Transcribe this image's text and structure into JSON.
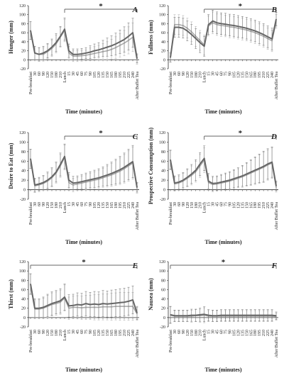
{
  "chart_data": [
    {
      "type": "line",
      "panel_label": "A",
      "ylabel": "Hunger (mm)",
      "xlabel": "Time (minutes)",
      "ylim": [
        -20,
        120
      ],
      "yticks": [
        -20,
        0,
        20,
        40,
        60,
        80,
        100,
        120
      ],
      "x_ticklabels": [
        "Pre-breakfast",
        "30",
        "60",
        "90",
        "120",
        "150",
        "180",
        "210",
        "Lunch",
        "15",
        "30",
        "45",
        "60",
        "75",
        "90",
        "105",
        "120",
        "135",
        "150",
        "165",
        "180",
        "195",
        "210",
        "225",
        "240",
        "After Buffet Tea"
      ],
      "significance": "*",
      "bracket": [
        8,
        25
      ],
      "series": [
        {
          "values": [
            65,
            15,
            12,
            12,
            18,
            25,
            35,
            50,
            65,
            15,
            8,
            8,
            9,
            10,
            12,
            14,
            16,
            18,
            20,
            23,
            27,
            32,
            37,
            43,
            50,
            0
          ],
          "errors": [
            20,
            15,
            15,
            15,
            16,
            18,
            20,
            22,
            25,
            15,
            12,
            12,
            12,
            12,
            14,
            15,
            16,
            18,
            20,
            22,
            24,
            26,
            28,
            30,
            32,
            10
          ],
          "color": "#aaaaaa"
        },
        {
          "values": [
            65,
            15,
            12,
            15,
            20,
            28,
            38,
            52,
            68,
            20,
            12,
            12,
            13,
            15,
            17,
            20,
            22,
            25,
            28,
            31,
            35,
            40,
            45,
            52,
            60,
            3
          ],
          "errors": [
            20,
            15,
            15,
            15,
            16,
            18,
            20,
            22,
            25,
            15,
            12,
            12,
            12,
            12,
            14,
            15,
            16,
            18,
            20,
            22,
            24,
            26,
            28,
            30,
            32,
            10
          ],
          "color": "#666666"
        }
      ]
    },
    {
      "type": "line",
      "panel_label": "B",
      "ylabel": "Fullness (mm)",
      "xlabel": "Time (minutes)",
      "ylim": [
        -20,
        120
      ],
      "yticks": [
        -20,
        0,
        20,
        40,
        60,
        80,
        100,
        120
      ],
      "x_ticklabels": [
        "Pre-breakfast",
        "30",
        "60",
        "90",
        "120",
        "150",
        "180",
        "210",
        "Lunch",
        "15",
        "30",
        "45",
        "60",
        "75",
        "90",
        "105",
        "120",
        "135",
        "150",
        "165",
        "180",
        "195",
        "210",
        "225",
        "240",
        "After Buffet Tea"
      ],
      "significance": "*",
      "bracket": [
        8,
        25
      ],
      "series": [
        {
          "values": [
            5,
            78,
            78,
            76,
            70,
            62,
            52,
            43,
            33,
            75,
            82,
            78,
            76,
            75,
            73,
            72,
            70,
            68,
            66,
            63,
            60,
            56,
            52,
            47,
            42,
            85
          ],
          "errors": [
            10,
            22,
            22,
            22,
            22,
            22,
            22,
            22,
            22,
            22,
            24,
            24,
            24,
            24,
            24,
            24,
            24,
            24,
            24,
            24,
            24,
            24,
            24,
            24,
            24,
            15
          ],
          "color": "#aaaaaa"
        },
        {
          "values": [
            5,
            72,
            72,
            70,
            64,
            56,
            47,
            38,
            30,
            78,
            86,
            82,
            80,
            79,
            77,
            76,
            74,
            72,
            70,
            67,
            64,
            60,
            56,
            51,
            46,
            90
          ],
          "errors": [
            10,
            22,
            22,
            22,
            22,
            22,
            22,
            22,
            22,
            22,
            24,
            24,
            24,
            24,
            24,
            24,
            24,
            24,
            24,
            24,
            24,
            24,
            24,
            24,
            24,
            15
          ],
          "color": "#666666"
        }
      ]
    },
    {
      "type": "line",
      "panel_label": "C",
      "ylabel": "Desire to Eat (mm)",
      "xlabel": "Time (minutes)",
      "ylim": [
        -20,
        120
      ],
      "yticks": [
        -20,
        0,
        20,
        40,
        60,
        80,
        100,
        120
      ],
      "x_ticklabels": [
        "Pre-breakfast",
        "30",
        "60",
        "90",
        "120",
        "150",
        "180",
        "210",
        "Lunch",
        "15",
        "30",
        "45",
        "60",
        "75",
        "90",
        "105",
        "120",
        "135",
        "150",
        "165",
        "180",
        "195",
        "210",
        "225",
        "240",
        "After Buffet Tea"
      ],
      "significance": "*",
      "bracket": [
        8,
        25
      ],
      "series": [
        {
          "values": [
            65,
            8,
            10,
            13,
            18,
            25,
            35,
            50,
            68,
            15,
            10,
            12,
            14,
            16,
            18,
            20,
            22,
            25,
            28,
            31,
            35,
            39,
            44,
            50,
            56,
            3
          ],
          "errors": [
            20,
            14,
            14,
            15,
            17,
            19,
            21,
            24,
            26,
            16,
            14,
            14,
            15,
            16,
            17,
            18,
            19,
            20,
            22,
            24,
            26,
            28,
            30,
            32,
            34,
            10
          ],
          "color": "#aaaaaa"
        },
        {
          "values": [
            65,
            10,
            12,
            15,
            20,
            27,
            37,
            53,
            70,
            20,
            14,
            15,
            17,
            19,
            21,
            23,
            25,
            28,
            31,
            34,
            38,
            42,
            47,
            53,
            59,
            5
          ],
          "errors": [
            20,
            14,
            14,
            15,
            17,
            19,
            21,
            24,
            26,
            16,
            14,
            14,
            15,
            16,
            17,
            18,
            19,
            20,
            22,
            24,
            26,
            28,
            30,
            32,
            34,
            10
          ],
          "color": "#666666"
        }
      ]
    },
    {
      "type": "line",
      "panel_label": "D",
      "ylabel": "Prospective Consumption (mm)",
      "xlabel": "Time (minutes)",
      "ylim": [
        -20,
        120
      ],
      "yticks": [
        -20,
        0,
        20,
        40,
        60,
        80,
        100,
        120
      ],
      "x_ticklabels": [
        "Pre-breakfast",
        "30",
        "60",
        "90",
        "120",
        "150",
        "180",
        "210",
        "Lunch",
        "15",
        "30",
        "45",
        "60",
        "75",
        "90",
        "105",
        "120",
        "135",
        "150",
        "165",
        "180",
        "195",
        "210",
        "225",
        "240",
        "After Buffet Tea"
      ],
      "significance": "*",
      "bracket": [
        8,
        25
      ],
      "series": [
        {
          "values": [
            62,
            12,
            14,
            18,
            24,
            30,
            38,
            50,
            62,
            15,
            11,
            12,
            14,
            16,
            18,
            21,
            24,
            27,
            31,
            35,
            39,
            43,
            47,
            52,
            56,
            5
          ],
          "errors": [
            20,
            15,
            15,
            16,
            18,
            20,
            22,
            24,
            26,
            16,
            15,
            15,
            16,
            17,
            18,
            19,
            20,
            22,
            24,
            26,
            28,
            30,
            32,
            32,
            32,
            10
          ],
          "color": "#aaaaaa"
        },
        {
          "values": [
            63,
            14,
            16,
            20,
            26,
            33,
            41,
            54,
            66,
            18,
            13,
            14,
            16,
            18,
            20,
            23,
            26,
            29,
            33,
            37,
            41,
            45,
            49,
            54,
            58,
            8
          ],
          "errors": [
            20,
            15,
            15,
            16,
            18,
            20,
            22,
            24,
            26,
            16,
            15,
            15,
            16,
            17,
            18,
            19,
            20,
            22,
            24,
            26,
            28,
            30,
            32,
            32,
            32,
            10
          ],
          "color": "#666666"
        }
      ]
    },
    {
      "type": "line",
      "panel_label": "E",
      "ylabel": "Thirst (mm)",
      "xlabel": "Time (minutes)",
      "ylim": [
        -20,
        120
      ],
      "yticks": [
        -20,
        0,
        20,
        40,
        60,
        80,
        100,
        120
      ],
      "x_ticklabels": [
        "Pre-breakfast",
        "30",
        "60",
        "90",
        "120",
        "150",
        "180",
        "210",
        "Lunch",
        "15",
        "30",
        "45",
        "60",
        "75",
        "90",
        "105",
        "120",
        "135",
        "150",
        "165",
        "180",
        "195",
        "210",
        "225",
        "240",
        "After Buffet Tea"
      ],
      "significance": "*",
      "bracket": [
        0,
        25
      ],
      "series": [
        {
          "values": [
            72,
            18,
            18,
            20,
            24,
            28,
            30,
            33,
            42,
            20,
            22,
            22,
            21,
            22,
            22,
            22,
            22,
            23,
            23,
            23,
            24,
            24,
            24,
            24,
            24,
            8
          ],
          "errors": [
            22,
            20,
            20,
            22,
            24,
            25,
            25,
            26,
            28,
            24,
            24,
            25,
            25,
            26,
            26,
            27,
            27,
            28,
            28,
            29,
            29,
            30,
            30,
            30,
            30,
            14
          ],
          "color": "#aaaaaa"
        },
        {
          "values": [
            72,
            20,
            20,
            22,
            26,
            30,
            33,
            36,
            44,
            25,
            26,
            28,
            27,
            30,
            28,
            29,
            28,
            30,
            29,
            30,
            31,
            32,
            33,
            35,
            38,
            10
          ],
          "errors": [
            22,
            20,
            20,
            22,
            24,
            25,
            25,
            26,
            28,
            24,
            24,
            25,
            25,
            26,
            26,
            27,
            27,
            28,
            28,
            29,
            29,
            30,
            30,
            30,
            30,
            14
          ],
          "color": "#666666"
        }
      ]
    },
    {
      "type": "line",
      "panel_label": "F",
      "ylabel": "Nausea (mm)",
      "xlabel": "Time (minutes)",
      "ylim": [
        -20,
        120
      ],
      "yticks": [
        -20,
        0,
        20,
        40,
        60,
        80,
        100,
        120
      ],
      "x_ticklabels": [
        "Pre-breakfast",
        "30",
        "60",
        "90",
        "120",
        "150",
        "180",
        "210",
        "Lunch",
        "15",
        "30",
        "45",
        "60",
        "75",
        "90",
        "105",
        "120",
        "135",
        "150",
        "165",
        "180",
        "195",
        "210",
        "225",
        "240",
        "After Buffet Tea"
      ],
      "significance": "*",
      "bracket": [
        0,
        25
      ],
      "series": [
        {
          "values": [
            5,
            3,
            3,
            3,
            3,
            3,
            4,
            4,
            5,
            3,
            3,
            3,
            3,
            3,
            3,
            3,
            3,
            3,
            3,
            3,
            3,
            3,
            3,
            3,
            3,
            2
          ],
          "errors": [
            18,
            12,
            12,
            12,
            12,
            13,
            13,
            14,
            16,
            12,
            12,
            12,
            12,
            12,
            12,
            12,
            12,
            12,
            12,
            12,
            12,
            12,
            12,
            12,
            12,
            8
          ],
          "color": "#aaaaaa"
        },
        {
          "values": [
            6,
            4,
            4,
            4,
            4,
            5,
            5,
            6,
            7,
            5,
            4,
            4,
            5,
            5,
            5,
            5,
            5,
            5,
            5,
            5,
            5,
            5,
            5,
            5,
            5,
            4
          ],
          "errors": [
            18,
            12,
            12,
            12,
            12,
            13,
            13,
            14,
            16,
            12,
            12,
            12,
            12,
            12,
            12,
            12,
            12,
            12,
            12,
            12,
            12,
            12,
            12,
            12,
            12,
            8
          ],
          "color": "#666666"
        }
      ]
    }
  ]
}
